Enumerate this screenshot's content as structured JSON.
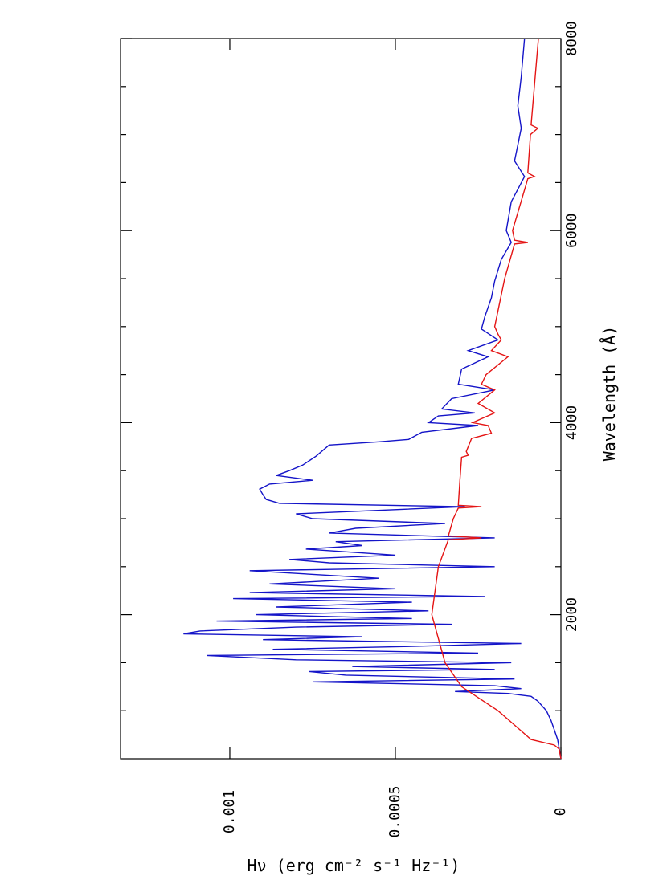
{
  "chart_data": {
    "type": "line",
    "orientation": "rotated",
    "x_label": "Wavelength (Å)",
    "y_label": "Hν (erg cm⁻² s⁻¹ Hz⁻¹)",
    "xlim": [
      500,
      8000
    ],
    "ylim": [
      0,
      0.00133
    ],
    "xticks": [
      2000,
      4000,
      6000,
      8000
    ],
    "xminorticks": [
      1000,
      1500,
      2500,
      3000,
      3500,
      4500,
      5000,
      5500,
      6500,
      7000,
      7500
    ],
    "yticks": [
      0,
      0.0005,
      0.001
    ],
    "grid": false,
    "series": [
      {
        "name": "blue",
        "color": "#1414c8",
        "x": [
          500,
          700,
          800,
          900,
          1000,
          1100,
          1150,
          1180,
          1200,
          1230,
          1260,
          1300,
          1330,
          1370,
          1408,
          1430,
          1460,
          1500,
          1530,
          1575,
          1600,
          1640,
          1670,
          1700,
          1740,
          1770,
          1800,
          1830,
          1870,
          1900,
          1933,
          1960,
          2000,
          2040,
          2080,
          2130,
          2167,
          2190,
          2230,
          2270,
          2320,
          2380,
          2458,
          2500,
          2540,
          2575,
          2620,
          2683,
          2720,
          2760,
          2800,
          2850,
          2900,
          2950,
          3000,
          3050,
          3125,
          3160,
          3200,
          3250,
          3308,
          3360,
          3400,
          3450,
          3500,
          3558,
          3650,
          3767,
          3800,
          3825,
          3900,
          3970,
          4000,
          4070,
          4101,
          4142,
          4250,
          4340,
          4400,
          4558,
          4686,
          4750,
          4861,
          4975,
          5100,
          5300,
          5475,
          5700,
          5876,
          6000,
          6300,
          6563,
          6725,
          7065,
          7300,
          7600,
          8000
        ],
        "values": [
          0,
          1e-05,
          2e-05,
          3e-05,
          4.4e-05,
          7e-05,
          9e-05,
          0.00016,
          0.00032,
          0.00012,
          0.0002,
          0.00075,
          0.00014,
          0.00065,
          0.00076,
          0.0002,
          0.00063,
          0.00015,
          0.0008,
          0.00107,
          0.00025,
          0.00087,
          0.00045,
          0.00012,
          0.0009,
          0.0006,
          0.00114,
          0.00109,
          0.0008,
          0.00033,
          0.00104,
          0.00045,
          0.00092,
          0.0004,
          0.00086,
          0.00045,
          0.00099,
          0.00023,
          0.00094,
          0.0005,
          0.00088,
          0.00055,
          0.00094,
          0.0002,
          0.0007,
          0.00082,
          0.0005,
          0.00077,
          0.0006,
          0.00068,
          0.0002,
          0.0007,
          0.00062,
          0.00035,
          0.00075,
          0.0008,
          0.00029,
          0.00085,
          0.00089,
          0.0009,
          0.00091,
          0.00088,
          0.00075,
          0.00086,
          0.00082,
          0.00078,
          0.00074,
          0.0007,
          0.00055,
          0.00046,
          0.00042,
          0.00025,
          0.0004,
          0.00037,
          0.00026,
          0.00036,
          0.00033,
          0.0002,
          0.00031,
          0.0003,
          0.00022,
          0.00028,
          0.00019,
          0.00024,
          0.00023,
          0.00021,
          0.0002,
          0.00018,
          0.00015,
          0.000165,
          0.00015,
          0.00011,
          0.00014,
          0.00012,
          0.00013,
          0.00012,
          0.00011
        ]
      },
      {
        "name": "red",
        "color": "#e41414",
        "x": [
          500,
          600,
          642,
          700,
          850,
          1000,
          1250,
          1500,
          2000,
          2500,
          2780,
          2800,
          2820,
          3000,
          3110,
          3125,
          3140,
          3400,
          3640,
          3660,
          3700,
          3835,
          3890,
          3970,
          4000,
          4101,
          4200,
          4340,
          4400,
          4500,
          4686,
          4750,
          4861,
          4921,
          5000,
          5500,
          5860,
          5876,
          5900,
          6000,
          6540,
          6563,
          6600,
          7000,
          7065,
          7100,
          8000
        ],
        "values": [
          0,
          5e-06,
          2e-05,
          9e-05,
          0.00014,
          0.00019,
          0.0003,
          0.00035,
          0.00039,
          0.00037,
          0.00034,
          0.00024,
          0.00034,
          0.000325,
          0.00031,
          0.00024,
          0.00031,
          0.000305,
          0.0003,
          0.00028,
          0.000286,
          0.00027,
          0.00021,
          0.00022,
          0.000267,
          0.0002,
          0.00025,
          0.0002,
          0.00024,
          0.000226,
          0.00016,
          0.00021,
          0.00018,
          0.00019,
          0.0002,
          0.00017,
          0.00014,
          0.0001,
          0.00014,
          0.000146,
          0.0001,
          8e-05,
          0.0001,
          9.2e-05,
          7e-05,
          9e-05,
          6.8e-05
        ]
      }
    ]
  }
}
